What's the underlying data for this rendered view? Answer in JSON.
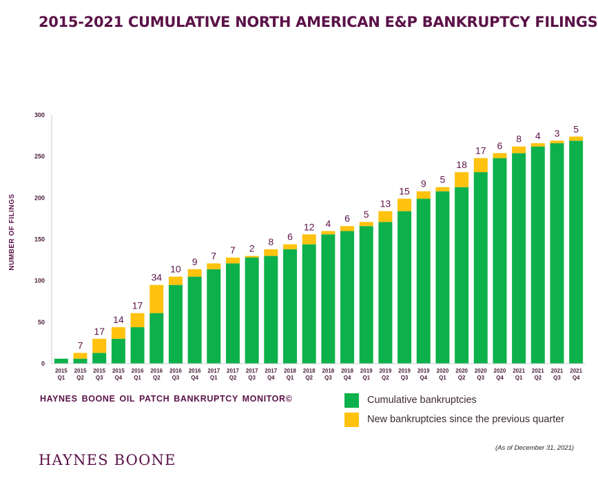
{
  "title": "2015-2021 CUMULATIVE NORTH AMERICAN E&P BANKRUPTCY FILINGS",
  "monitor_text": "HAYNES BOONE OIL PATCH BANKRUPTCY MONITOR©",
  "as_of": "(As of December 31, 2021)",
  "brand": "HAYNES BOONE",
  "colors": {
    "cumulative": "#0db14b",
    "new": "#ffc20e",
    "text": "#5b1248"
  },
  "chart_data": {
    "type": "bar",
    "stacked": true,
    "ylabel": "NUMBER OF FILINGS",
    "ylim": [
      0,
      300
    ],
    "yticks": [
      0,
      50,
      100,
      150,
      200,
      250,
      300
    ],
    "grid": false,
    "categories": [
      [
        "2015",
        "Q1"
      ],
      [
        "2015",
        "Q2"
      ],
      [
        "2015",
        "Q3"
      ],
      [
        "2015",
        "Q4"
      ],
      [
        "2016",
        "Q1"
      ],
      [
        "2016",
        "Q2"
      ],
      [
        "2016",
        "Q3"
      ],
      [
        "2016",
        "Q4"
      ],
      [
        "2017",
        "Q1"
      ],
      [
        "2017",
        "Q2"
      ],
      [
        "2017",
        "Q3"
      ],
      [
        "2017",
        "Q4"
      ],
      [
        "2018",
        "Q1"
      ],
      [
        "2018",
        "Q2"
      ],
      [
        "2018",
        "Q3"
      ],
      [
        "2018",
        "Q4"
      ],
      [
        "2019",
        "Q1"
      ],
      [
        "2019",
        "Q2"
      ],
      [
        "2019",
        "Q3"
      ],
      [
        "2019",
        "Q4"
      ],
      [
        "2020",
        "Q1"
      ],
      [
        "2020",
        "Q2"
      ],
      [
        "2020",
        "Q3"
      ],
      [
        "2020",
        "Q4"
      ],
      [
        "2021",
        "Q1"
      ],
      [
        "2021",
        "Q2"
      ],
      [
        "2021",
        "Q3"
      ],
      [
        "2021",
        "Q4"
      ]
    ],
    "series": [
      {
        "name": "Cumulative bankruptcies",
        "values": [
          6,
          6,
          13,
          30,
          44,
          61,
          95,
          105,
          114,
          121,
          128,
          130,
          138,
          144,
          156,
          160,
          166,
          171,
          184,
          199,
          208,
          213,
          231,
          248,
          254,
          262,
          266,
          269
        ]
      },
      {
        "name": "New bankruptcies since the previous quarter",
        "values": [
          0,
          7,
          17,
          14,
          17,
          34,
          10,
          9,
          7,
          7,
          2,
          8,
          6,
          12,
          4,
          6,
          5,
          13,
          15,
          9,
          5,
          18,
          17,
          6,
          8,
          4,
          3,
          5
        ]
      }
    ],
    "data_labels": [
      "",
      "7",
      "17",
      "14",
      "17",
      "34",
      "10",
      "9",
      "7",
      "7",
      "2",
      "8",
      "6",
      "12",
      "4",
      "6",
      "5",
      "13",
      "15",
      "9",
      "5",
      "18",
      "17",
      "6",
      "8",
      "4",
      "3",
      "5"
    ],
    "legend_position": "bottom-right"
  }
}
